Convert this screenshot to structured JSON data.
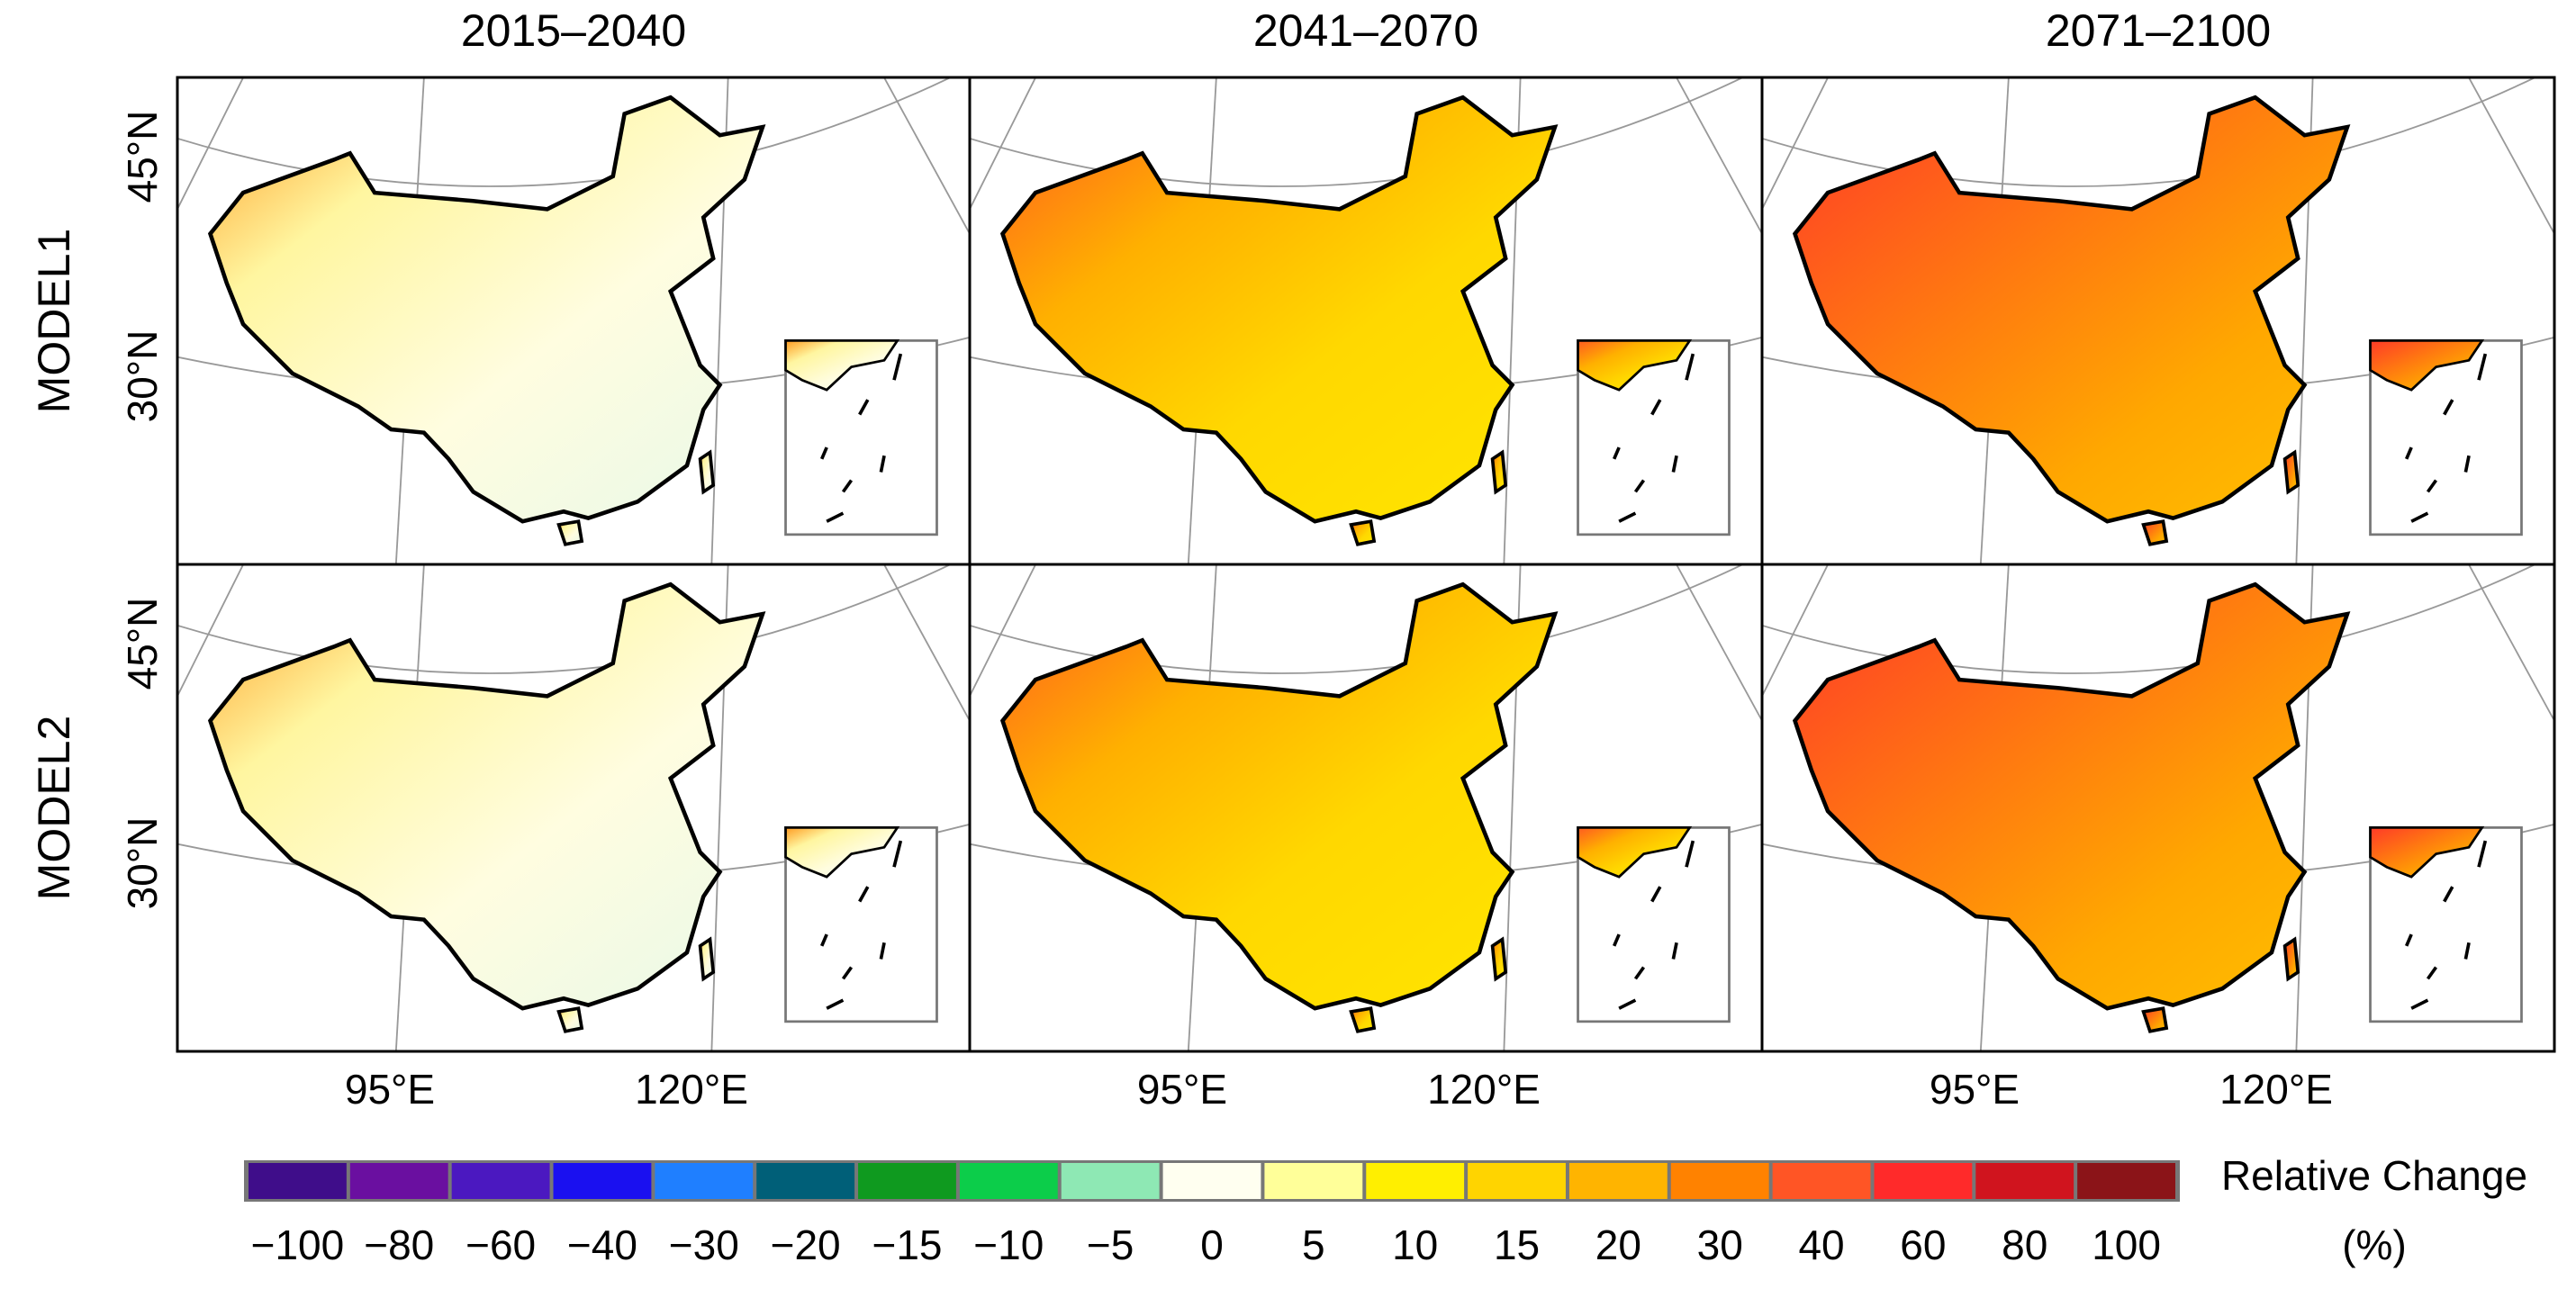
{
  "columns": [
    "2015–2040",
    "2041–2070",
    "2071–2100"
  ],
  "rows": [
    "MODEL1",
    "MODEL2"
  ],
  "lat_labels": [
    "45°N",
    "30°N"
  ],
  "lon_labels": [
    "95°E",
    "120°E"
  ],
  "legend": {
    "title": "Relative Change",
    "unit": "(%)",
    "levels": [
      {
        "label": "−100",
        "color": "#3f0d8a"
      },
      {
        "label": "−80",
        "color": "#6a0fa0"
      },
      {
        "label": "−60",
        "color": "#4b18c0"
      },
      {
        "label": "−40",
        "color": "#1a10f0"
      },
      {
        "label": "−30",
        "color": "#1f7fff"
      },
      {
        "label": "−20",
        "color": "#005f78"
      },
      {
        "label": "−15",
        "color": "#0f9a1f"
      },
      {
        "label": "−10",
        "color": "#0ccd4a"
      },
      {
        "label": "−5",
        "color": "#8ee8b4"
      },
      {
        "label": "0",
        "color": "#fffff0"
      },
      {
        "label": "5",
        "color": "#ffff99"
      },
      {
        "label": "10",
        "color": "#ffef00"
      },
      {
        "label": "15",
        "color": "#ffd400"
      },
      {
        "label": "20",
        "color": "#ffb400"
      },
      {
        "label": "30",
        "color": "#ff8200"
      },
      {
        "label": "40",
        "color": "#ff5525"
      },
      {
        "label": "60",
        "color": "#ff2a2a"
      },
      {
        "label": "80",
        "color": "#d0141e"
      },
      {
        "label": "100",
        "color": "#8b1418"
      }
    ]
  }
}
